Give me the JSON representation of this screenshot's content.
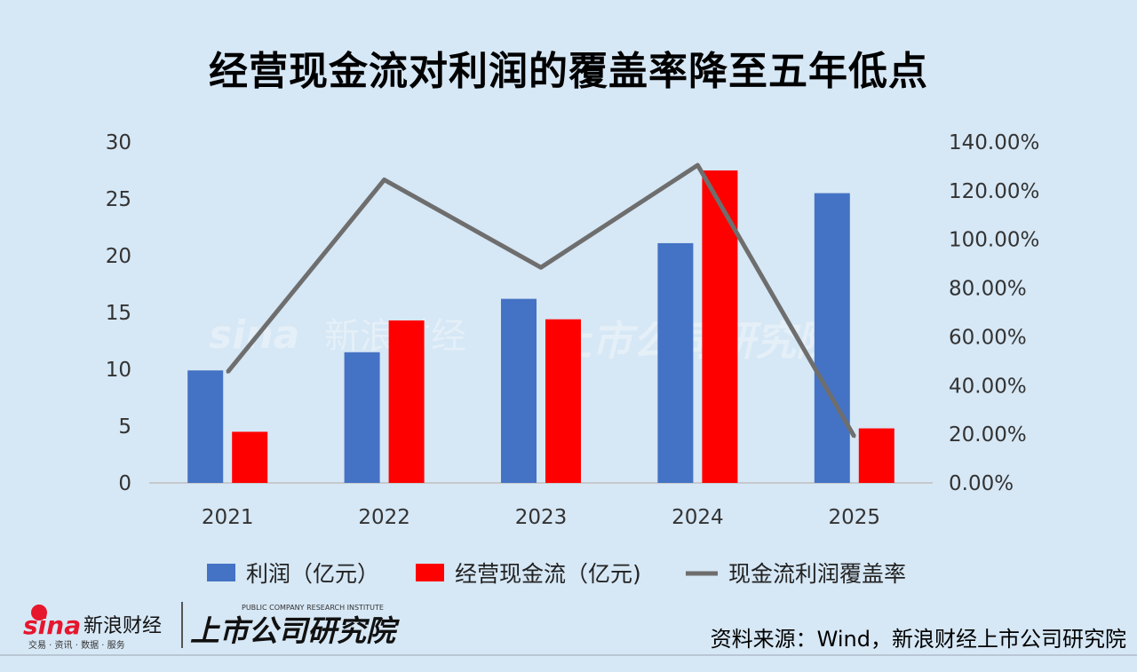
{
  "title": "经营现金流对利润的覆盖率降至五年低点",
  "source": "资料来源：Wind，新浪财经上市公司研究院",
  "logo": {
    "sina": "sina",
    "sina_cn": "新浪财经",
    "sina_tagline": "交易 · 资讯 · 数据 · 服务",
    "institute": "上市公司研究院",
    "institute_en": "PUBLIC COMPANY RESEARCH INSTITUTE"
  },
  "colors": {
    "profit": "#4472c4",
    "cashflow": "#ff0000",
    "coverage": "#6e6e6e",
    "background": "#d6e7f5"
  },
  "chart_data": {
    "type": "bar",
    "categories": [
      "2021",
      "2022",
      "2023",
      "2024",
      "2025"
    ],
    "series": [
      {
        "name": "利润（亿元）",
        "type": "bar",
        "axis": "left",
        "values": [
          9.9,
          11.5,
          16.2,
          21.1,
          25.5
        ]
      },
      {
        "name": "经营现金流（亿元)",
        "type": "bar",
        "axis": "left",
        "values": [
          4.5,
          14.3,
          14.4,
          27.5,
          4.8
        ]
      },
      {
        "name": "现金流利润覆盖率",
        "type": "line",
        "axis": "right",
        "values": [
          0.455,
          1.245,
          0.885,
          1.305,
          0.19
        ]
      }
    ],
    "y_left": {
      "min": 0,
      "max": 30,
      "ticks": [
        "0",
        "5",
        "10",
        "15",
        "20",
        "25",
        "30"
      ]
    },
    "y_right": {
      "min": 0,
      "max": 1.4,
      "ticks": [
        "0.00%",
        "20.00%",
        "40.00%",
        "60.00%",
        "80.00%",
        "100.00%",
        "120.00%",
        "140.00%"
      ]
    },
    "grid": false,
    "legend_position": "bottom"
  }
}
